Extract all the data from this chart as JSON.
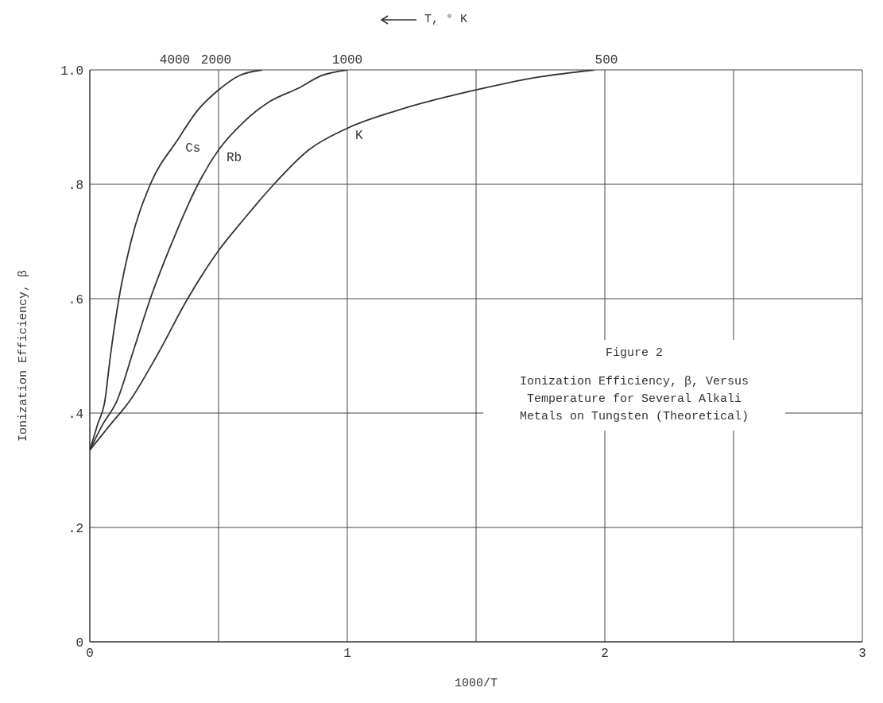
{
  "chart_data": {
    "type": "line",
    "title": "Figure 2",
    "subtitle": "Ionization Efficiency, β, Versus Temperature for Several Alkali Metals on Tungsten (Theoretical)",
    "xlabel": "1000/T",
    "ylabel": "Ionization Efficiency, β",
    "x2label": "T, ° K",
    "xlim": [
      0,
      3
    ],
    "xticks": [
      0,
      {
        "value": 0.5,
        "label": null
      },
      1,
      {
        "value": 1.5,
        "label": null
      },
      2,
      {
        "value": 2.5,
        "label": null
      },
      3
    ],
    "annotations": [
      "4000",
      "2000",
      "1000",
      "500"
    ],
    "ylim": [
      0,
      1
    ],
    "yticks": [
      0,
      {
        "value": 0.2,
        "label": ".2"
      },
      {
        "value": 0.4,
        "label": ".4"
      },
      {
        "value": 0.6,
        "label": ".6"
      },
      {
        "value": 0.8,
        "label": ".8"
      },
      {
        "value": 1,
        "label": "1.0"
      }
    ],
    "grid": true,
    "legend": false,
    "marker": "none",
    "line_style": "solid",
    "series": [
      {
        "name": "Cs",
        "color": "#333333",
        "x": [
          0,
          0.03,
          0.058,
          0.08,
          0.113,
          0.16,
          0.235,
          0.34,
          0.42,
          0.5,
          0.58,
          0.67
        ],
        "values": [
          0.335,
          0.38,
          0.42,
          0.5,
          0.6,
          0.7,
          0.8,
          0.877,
          0.93,
          0.965,
          0.99,
          1.0
        ]
      },
      {
        "name": "Rb",
        "color": "#333333",
        "x": [
          0,
          0.05,
          0.104,
          0.17,
          0.235,
          0.33,
          0.42,
          0.5,
          0.6,
          0.7,
          0.81,
          0.9,
          1.0
        ],
        "values": [
          0.335,
          0.38,
          0.42,
          0.51,
          0.6,
          0.71,
          0.8,
          0.86,
          0.91,
          0.945,
          0.968,
          0.99,
          1.0
        ]
      },
      {
        "name": "K",
        "color": "#333333",
        "x": [
          0,
          0.08,
          0.153,
          0.26,
          0.38,
          0.5,
          0.6,
          0.715,
          0.85,
          1.0,
          1.2,
          1.5,
          1.75,
          1.96
        ],
        "values": [
          0.335,
          0.38,
          0.42,
          0.5,
          0.6,
          0.684,
          0.74,
          0.8,
          0.86,
          0.898,
          0.93,
          0.965,
          0.988,
          1.0
        ]
      }
    ]
  }
}
